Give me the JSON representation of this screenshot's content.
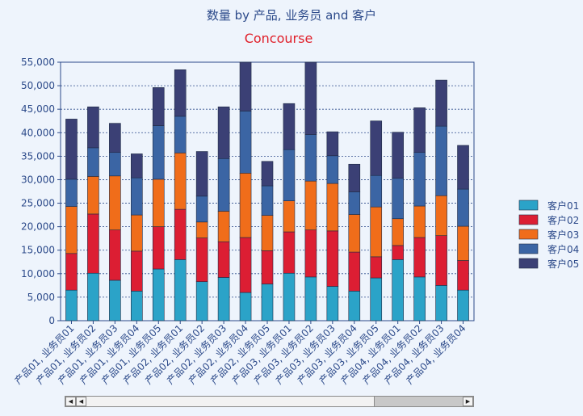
{
  "chart_data": {
    "type": "bar",
    "stacked": true,
    "title": "数量 by 产品, 业务员 and 客户",
    "subtitle": "Concourse",
    "xlabel": "",
    "ylabel": "",
    "ylim": [
      0,
      55000
    ],
    "yticks": [
      "0",
      "5,000",
      "10,000",
      "15,000",
      "20,000",
      "25,000",
      "30,000",
      "35,000",
      "40,000",
      "45,000",
      "50,000",
      "55,000"
    ],
    "grid": true,
    "legend_position": "right",
    "categories": [
      "产品01, 业务员01",
      "产品01, 业务员02",
      "产品01, 业务员03",
      "产品01, 业务员04",
      "产品01, 业务员05",
      "产品02, 业务员01",
      "产品02, 业务员02",
      "产品02, 业务员03",
      "产品02, 业务员04",
      "产品02, 业务员05",
      "产品03, 业务员01",
      "产品03, 业务员02",
      "产品03, 业务员03",
      "产品03, 业务员04",
      "产品03, 业务员05",
      "产品04, 业务员01",
      "产品04, 业务员02",
      "产品04, 业务员03",
      "产品04, 业务员04"
    ],
    "series": [
      {
        "name": "客户01",
        "color": "#2ba3c8",
        "values": [
          6500,
          10100,
          8600,
          6300,
          11000,
          13000,
          8300,
          9200,
          6000,
          7800,
          10100,
          9300,
          7300,
          6300,
          9100,
          13000,
          9300,
          7500,
          6500
        ]
      },
      {
        "name": "客户02",
        "color": "#dc1e33",
        "values": [
          7800,
          12600,
          10700,
          8500,
          9000,
          10700,
          9300,
          7600,
          11700,
          7100,
          8800,
          10000,
          11800,
          8300,
          4500,
          3000,
          8400,
          10600,
          6300
        ]
      },
      {
        "name": "客户03",
        "color": "#f06d1a",
        "values": [
          10000,
          8000,
          11500,
          7700,
          10100,
          12000,
          3400,
          6500,
          13700,
          7500,
          6600,
          10400,
          10100,
          8000,
          10600,
          5700,
          6700,
          8500,
          7300
        ]
      },
      {
        "name": "客户04",
        "color": "#3b65a4",
        "values": [
          5800,
          6100,
          5000,
          7900,
          11400,
          7800,
          5500,
          11200,
          13200,
          6300,
          10900,
          9900,
          5900,
          4800,
          6700,
          8600,
          11400,
          14800,
          7900
        ]
      },
      {
        "name": "客户05",
        "color": "#3b4075",
        "values": [
          12800,
          8700,
          6200,
          5100,
          8100,
          9900,
          9500,
          11000,
          11000,
          5200,
          9800,
          15500,
          5100,
          5900,
          11600,
          9800,
          9500,
          9800,
          9300
        ]
      }
    ]
  }
}
